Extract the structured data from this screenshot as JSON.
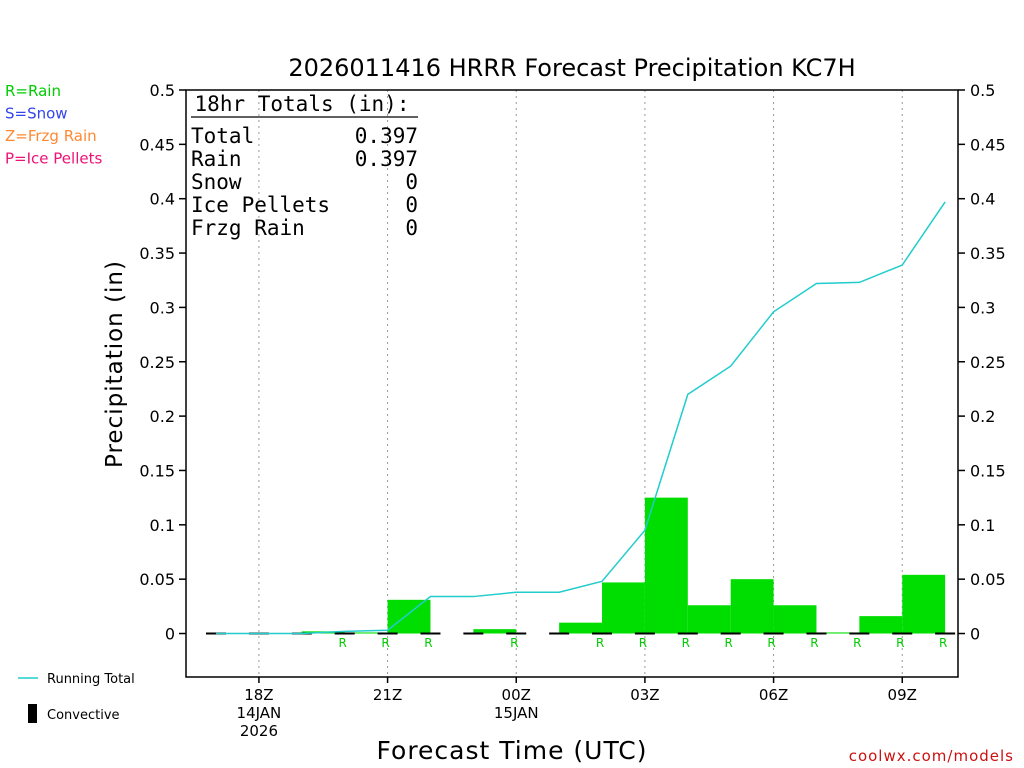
{
  "chart_data": {
    "type": "bar",
    "title": "2026011416 HRRR Forecast Precipitation KC7H",
    "xlabel": "Forecast Time (UTC)",
    "ylabel": "Precipitation (in)",
    "ylim": [
      -0.04,
      0.5
    ],
    "yticks": [
      0,
      0.05,
      0.1,
      0.15,
      0.2,
      0.25,
      0.3,
      0.35,
      0.4,
      0.45,
      0.5
    ],
    "ytick_labels": [
      "0",
      "0.05",
      "0.1",
      "0.15",
      "0.2",
      "0.25",
      "0.3",
      "0.35",
      "0.4",
      "0.45",
      "0.5"
    ],
    "xlim": [
      16.3,
      34.3
    ],
    "xticks": [
      {
        "hour": 18,
        "lines": [
          "18Z",
          "14JAN",
          "2026"
        ]
      },
      {
        "hour": 21,
        "lines": [
          "21Z"
        ]
      },
      {
        "hour": 24,
        "lines": [
          "00Z",
          "15JAN"
        ]
      },
      {
        "hour": 27,
        "lines": [
          "03Z"
        ]
      },
      {
        "hour": 30,
        "lines": [
          "06Z"
        ]
      },
      {
        "hour": 33,
        "lines": [
          "09Z"
        ]
      }
    ],
    "grid": "vertical dotted",
    "hours": [
      17,
      18,
      19,
      20,
      21,
      22,
      23,
      24,
      25,
      26,
      27,
      28,
      29,
      30,
      31,
      32,
      33,
      34
    ],
    "series": [
      {
        "name": "Rain",
        "color": "#00dd00",
        "values": [
          0,
          0,
          0,
          0.002,
          0.001,
          0.031,
          0,
          0.004,
          0,
          0.01,
          0.047,
          0.125,
          0.026,
          0.05,
          0.026,
          0.001,
          0.016,
          0.054
        ]
      },
      {
        "name": "Running Total",
        "color": "#22cccc",
        "values": [
          0,
          0,
          0,
          0.002,
          0.003,
          0.034,
          0.034,
          0.038,
          0.038,
          0.048,
          0.095,
          0.22,
          0.246,
          0.296,
          0.322,
          0.323,
          0.339,
          0.397
        ]
      }
    ],
    "rain_markers_hours": [
      20,
      21,
      22,
      24,
      26,
      27,
      28,
      29,
      30,
      31,
      32,
      33,
      34
    ],
    "rain_marker_label": "R"
  },
  "precip_key": [
    {
      "text": "R=Rain",
      "color": "#00cc00"
    },
    {
      "text": "S=Snow",
      "color": "#3344ee"
    },
    {
      "text": "Z=Frzg Rain",
      "color": "#ff8833"
    },
    {
      "text": "P=Ice Pellets",
      "color": "#ee1177"
    }
  ],
  "totals": {
    "header": "18hr Totals (in):",
    "rows": [
      {
        "label": "Total",
        "value": "0.397"
      },
      {
        "label": "Rain",
        "value": "0.397"
      },
      {
        "label": "Snow",
        "value": "0"
      },
      {
        "label": "Ice Pellets",
        "value": "0"
      },
      {
        "label": "Frzg Rain",
        "value": "0"
      }
    ]
  },
  "legend": {
    "running_total": "Running Total",
    "convective": "Convective"
  },
  "credit": "coolwx.com/models"
}
